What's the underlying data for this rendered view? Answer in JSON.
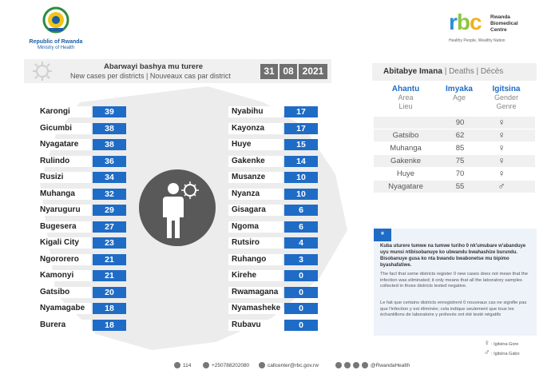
{
  "header": {
    "ministry_line1": "Republic of Rwanda",
    "ministry_line2": "Ministry of Health",
    "rbc_logo": "rbc",
    "rbc_name_line1": "Rwanda",
    "rbc_name_line2": "Biomedical",
    "rbc_name_line3": "Centre",
    "rbc_tagline": "Healthy People, Wealthy Nation"
  },
  "cases": {
    "title_rw": "Abarwayi bashya mu turere",
    "title_en_fr": "New cases per districts  |  Nouveaux cas par district",
    "date_day": "31",
    "date_month": "08",
    "date_year": "2021",
    "left_column": [
      {
        "district": "Karongi",
        "count": "39"
      },
      {
        "district": "Gicumbi",
        "count": "38"
      },
      {
        "district": "Nyagatare",
        "count": "38"
      },
      {
        "district": "Rulindo",
        "count": "36"
      },
      {
        "district": "Rusizi",
        "count": "34"
      },
      {
        "district": "Muhanga",
        "count": "32"
      },
      {
        "district": "Nyaruguru",
        "count": "29"
      },
      {
        "district": "Bugesera",
        "count": "27"
      },
      {
        "district": "Kigali City",
        "count": "23"
      },
      {
        "district": "Ngororero",
        "count": "21"
      },
      {
        "district": "Kamonyi",
        "count": "21"
      },
      {
        "district": "Gatsibo",
        "count": "20"
      },
      {
        "district": "Nyamagabe",
        "count": "18"
      },
      {
        "district": "Burera",
        "count": "18"
      }
    ],
    "right_column": [
      {
        "district": "Nyabihu",
        "count": "17"
      },
      {
        "district": "Kayonza",
        "count": "17"
      },
      {
        "district": "Huye",
        "count": "15"
      },
      {
        "district": "Gakenke",
        "count": "14"
      },
      {
        "district": "Musanze",
        "count": "10"
      },
      {
        "district": "Nyanza",
        "count": "10"
      },
      {
        "district": "Gisagara",
        "count": "6"
      },
      {
        "district": "Ngoma",
        "count": "6"
      },
      {
        "district": "Rutsiro",
        "count": "4"
      },
      {
        "district": "Ruhango",
        "count": "3"
      },
      {
        "district": "Kirehe",
        "count": "0"
      },
      {
        "district": "Rwamagana",
        "count": "0"
      },
      {
        "district": "Nyamasheke",
        "count": "0"
      },
      {
        "district": "Rubavu",
        "count": "0"
      }
    ]
  },
  "deaths": {
    "header_rw": "Abitabye Imana",
    "header_rest": "  |  Deaths  |  Décès",
    "col_place": {
      "main": "Ahantu",
      "en": "Area",
      "fr": "Lieu"
    },
    "col_age": {
      "main": "Imyaka",
      "en": "Age"
    },
    "col_gender": {
      "main": "Igitsina",
      "en": "Gender",
      "fr": "Genre"
    },
    "rows": [
      {
        "place": "",
        "age": "90",
        "gender": "♀"
      },
      {
        "place": "Gatsibo",
        "age": "62",
        "gender": "♀"
      },
      {
        "place": "Muhanga",
        "age": "85",
        "gender": "♀"
      },
      {
        "place": "Gakenke",
        "age": "75",
        "gender": "♀"
      },
      {
        "place": "Huye",
        "age": "70",
        "gender": "♀"
      },
      {
        "place": "Nyagatare",
        "age": "55",
        "gender": "♂"
      }
    ]
  },
  "note": {
    "star": "*",
    "text_rw": "Kuba uturere tumwe na tumwe turiho 0 nk'umubare w'abanduye uyu munsi ntibisobanuye ko ubwandu bwahashize burundu. Bisobanuye gusa ko nta bwandu bwabonetse mu bipimo byashafatiwe.",
    "text_en": "The fact that some districts register 0 new cases does not mean that the infection was eliminated; it only means that all the laboratory samples collected in those districts tested negative.",
    "text_fr": "Le fait que certains districts enregistrent 0 nouveaux cas ne signifie pas que l'infection y est éliminée; cela indique seulement que tous les échantillons de laboratoire y prélevés ont été testé négatifs"
  },
  "legend": {
    "female_symbol": "♀",
    "female_label": ": Igitsina Gore",
    "male_symbol": "♂",
    "male_label": ": Igitsina Gabo"
  },
  "footer": {
    "hotline": "114",
    "whatsapp": "+250788202080",
    "email": "callcenter@rbc.gov.rw",
    "social": "@RwandaHealth"
  },
  "colors": {
    "accent_blue": "#1f6cc6",
    "rbc_red": "#2b8fd6",
    "rbc_green": "#8cc63f",
    "rbc_yellow": "#f2b01e"
  }
}
